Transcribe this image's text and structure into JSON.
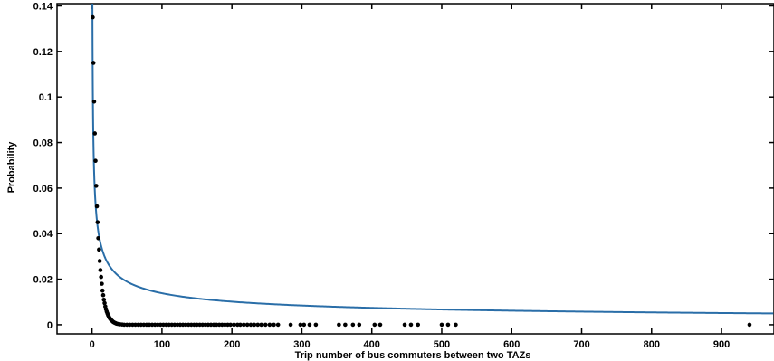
{
  "chart_data": {
    "type": "scatter",
    "title": "",
    "xlabel": "Trip number of bus commuters between two TAZs",
    "ylabel": "Probability",
    "xlim": [
      -50,
      975
    ],
    "ylim": [
      -0.004,
      0.141
    ],
    "xticks": [
      0,
      100,
      200,
      300,
      400,
      500,
      600,
      700,
      800,
      900
    ],
    "yticks": [
      0,
      0.02,
      0.04,
      0.06,
      0.08,
      0.1,
      0.12,
      0.14
    ],
    "ytick_labels": [
      "0",
      "0.02",
      "0.04",
      "0.06",
      "0.08",
      "0.1",
      "0.12",
      "0.14"
    ],
    "grid": false,
    "legend": "none",
    "series": [
      {
        "kind": "scatter",
        "color": "#000000",
        "points": [
          [
            1,
            0.135
          ],
          [
            2,
            0.115
          ],
          [
            3,
            0.098
          ],
          [
            4,
            0.084
          ],
          [
            5,
            0.072
          ],
          [
            6,
            0.061
          ],
          [
            7,
            0.052
          ],
          [
            8,
            0.045
          ],
          [
            9,
            0.038
          ],
          [
            10,
            0.033
          ],
          [
            11,
            0.028
          ],
          [
            12,
            0.024
          ],
          [
            13,
            0.021
          ],
          [
            14,
            0.018
          ],
          [
            15,
            0.015
          ],
          [
            16,
            0.013
          ],
          [
            17,
            0.011
          ],
          [
            18,
            0.0095
          ],
          [
            19,
            0.008
          ],
          [
            20,
            0.0068
          ],
          [
            21,
            0.0058
          ],
          [
            22,
            0.005
          ],
          [
            23,
            0.0042
          ],
          [
            24,
            0.0036
          ],
          [
            25,
            0.003
          ],
          [
            26,
            0.0026
          ],
          [
            27,
            0.0022
          ],
          [
            28,
            0.0019
          ],
          [
            29,
            0.0016
          ],
          [
            30,
            0.0013
          ],
          [
            31,
            0.0011
          ],
          [
            32,
            0.0009
          ],
          [
            33,
            0.0008
          ],
          [
            34,
            0.0006
          ],
          [
            35,
            0.0005
          ],
          [
            36,
            0.0004
          ],
          [
            38,
            0.0003
          ],
          [
            40,
            0.0002
          ],
          [
            43,
            0.0001
          ],
          [
            46,
            0
          ],
          [
            50,
            0
          ],
          [
            54,
            0
          ],
          [
            58,
            0
          ],
          [
            62,
            0
          ],
          [
            66,
            0
          ],
          [
            70,
            0
          ],
          [
            74,
            0
          ],
          [
            78,
            0
          ],
          [
            82,
            0
          ],
          [
            86,
            0
          ],
          [
            90,
            0
          ],
          [
            94,
            0
          ],
          [
            98,
            0
          ],
          [
            102,
            0
          ],
          [
            106,
            0
          ],
          [
            110,
            0
          ],
          [
            114,
            0
          ],
          [
            118,
            0
          ],
          [
            122,
            0
          ],
          [
            126,
            0
          ],
          [
            130,
            0
          ],
          [
            134,
            0
          ],
          [
            138,
            0
          ],
          [
            142,
            0
          ],
          [
            146,
            0
          ],
          [
            150,
            0
          ],
          [
            154,
            0
          ],
          [
            158,
            0
          ],
          [
            162,
            0
          ],
          [
            166,
            0
          ],
          [
            170,
            0
          ],
          [
            174,
            0
          ],
          [
            178,
            0
          ],
          [
            182,
            0
          ],
          [
            186,
            0
          ],
          [
            190,
            0
          ],
          [
            194,
            0
          ],
          [
            198,
            0
          ],
          [
            203,
            0
          ],
          [
            208,
            0
          ],
          [
            212,
            0
          ],
          [
            217,
            0
          ],
          [
            222,
            0
          ],
          [
            227,
            0
          ],
          [
            232,
            0
          ],
          [
            237,
            0
          ],
          [
            242,
            0
          ],
          [
            248,
            0
          ],
          [
            254,
            0
          ],
          [
            260,
            0
          ],
          [
            266,
            0
          ],
          [
            284,
            0
          ],
          [
            298,
            0
          ],
          [
            303,
            0
          ],
          [
            311,
            0
          ],
          [
            320,
            0
          ],
          [
            353,
            0
          ],
          [
            362,
            0
          ],
          [
            373,
            0
          ],
          [
            382,
            0
          ],
          [
            404,
            0
          ],
          [
            412,
            0
          ],
          [
            447,
            0
          ],
          [
            456,
            0
          ],
          [
            466,
            0
          ],
          [
            500,
            0
          ],
          [
            509,
            0
          ],
          [
            520,
            0
          ],
          [
            940,
            0
          ]
        ]
      },
      {
        "kind": "line",
        "color": "#2a6ea8",
        "model": "power",
        "coefficient": 0.11,
        "exponent": -0.45
      }
    ]
  }
}
